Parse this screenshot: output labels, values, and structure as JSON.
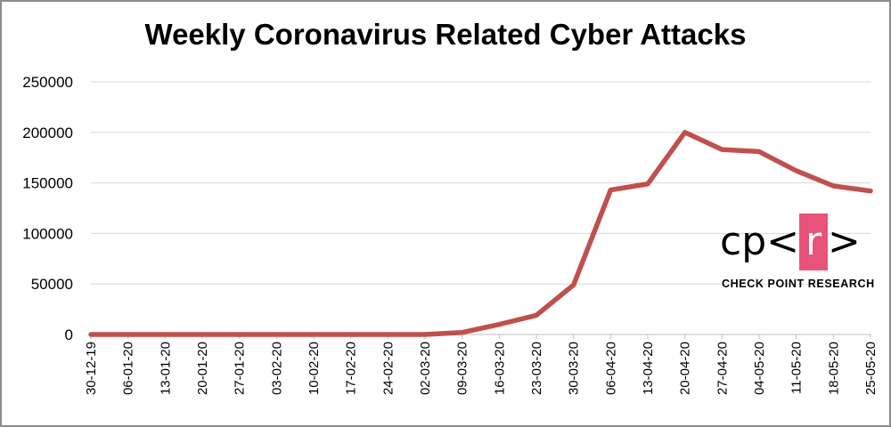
{
  "chart_data": {
    "type": "line",
    "title": "Weekly Coronavirus Related Cyber Attacks",
    "xlabel": "",
    "ylabel": "",
    "ylim": [
      0,
      250000
    ],
    "yticks": [
      "0",
      "50000",
      "100000",
      "150000",
      "200000",
      "250000"
    ],
    "grid": true,
    "legend": "none",
    "categories": [
      "30-12-19",
      "06-01-20",
      "13-01-20",
      "20-01-20",
      "27-01-20",
      "03-02-20",
      "10-02-20",
      "17-02-20",
      "24-02-20",
      "02-03-20",
      "09-03-20",
      "16-03-20",
      "23-03-20",
      "30-03-20",
      "06-04-20",
      "13-04-20",
      "20-04-20",
      "27-04-20",
      "04-05-20",
      "11-05-20",
      "18-05-20",
      "25-05-20"
    ],
    "series": [
      {
        "values": [
          0,
          0,
          0,
          0,
          0,
          0,
          0,
          0,
          0,
          0,
          2000,
          10000,
          19000,
          49000,
          143000,
          149000,
          200000,
          183000,
          181000,
          162000,
          147000,
          142000
        ],
        "color": "#c0504d"
      }
    ]
  },
  "logo": {
    "mark_c": "cp",
    "mark_open": "<",
    "mark_r": "r",
    "mark_close": ">",
    "caption": "CHECK POINT RESEARCH",
    "accent": "#e8537a"
  }
}
